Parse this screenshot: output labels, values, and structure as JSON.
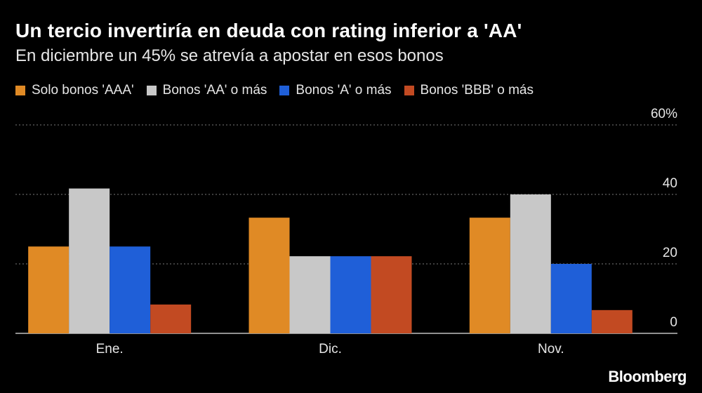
{
  "chart_data": {
    "type": "bar",
    "title": "Un tercio invertiría en deuda con rating inferior a 'AA'",
    "subtitle": "En diciembre un 45% se atrevía a apostar en esos bonos",
    "categories": [
      "Ene.",
      "Dic.",
      "Nov."
    ],
    "series": [
      {
        "name": "Solo bonos 'AAA'",
        "color": "#e08a25",
        "values": [
          25,
          33.3,
          33.3
        ]
      },
      {
        "name": "Bonos 'AA' o más",
        "color": "#c8c8c8",
        "values": [
          41.7,
          22.2,
          40
        ]
      },
      {
        "name": "Bonos 'A' o más",
        "color": "#1f5fd8",
        "values": [
          25,
          22.2,
          20
        ]
      },
      {
        "name": "Bonos 'BBB' o más",
        "color": "#c24a22",
        "values": [
          8.3,
          22.2,
          6.7
        ]
      }
    ],
    "ylim": [
      0,
      60
    ],
    "yticks": [
      {
        "value": 60,
        "label": "60%"
      },
      {
        "value": 40,
        "label": "40"
      },
      {
        "value": 20,
        "label": "20"
      },
      {
        "value": 0,
        "label": "0"
      }
    ],
    "grid": true,
    "legend_position": "top-left"
  },
  "source_brand": "Bloomberg"
}
